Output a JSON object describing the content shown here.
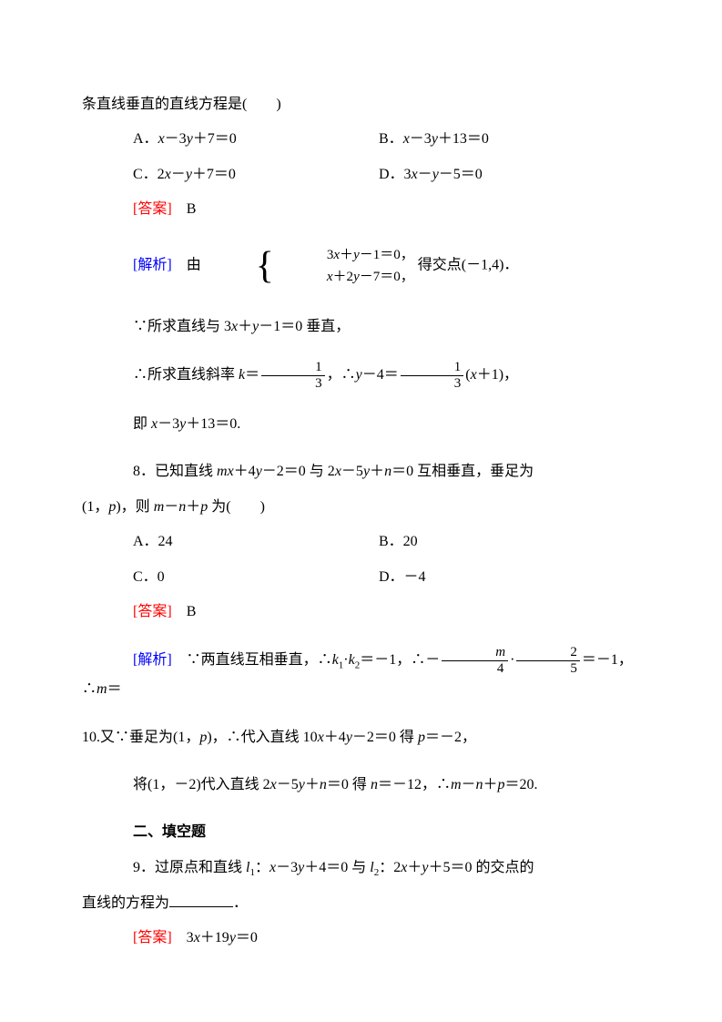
{
  "q7": {
    "stem_tail": "条直线垂直的直线方程是(　　)",
    "A": "A．x－3y＋7＝0",
    "B": "B．x－3y＋13＝0",
    "C": "C．2x－y＋7＝0",
    "D": "D．3x－y－5＝0",
    "answer_label": "[答案]",
    "answer_value": "B",
    "analysis_label": "[解析]",
    "analysis": {
      "by": "由",
      "eq1": "3x＋y－1＝0，",
      "eq2": "x＋2y－7＝0，",
      "after_system": "得交点(－1,4)．",
      "line2": "∵所求直线与 3x＋y－1＝0 垂直，",
      "line3_pre": "∴所求直线斜率 k＝",
      "line3_mid": "，∴y－4＝",
      "line3_post": "(x＋1)，",
      "frac1_num": "1",
      "frac1_den": "3",
      "frac2_num": "1",
      "frac2_den": "3",
      "line4": "即 x－3y＋13＝0."
    }
  },
  "q8": {
    "stem1": "8．已知直线 mx＋4y－2＝0 与 2x－5y＋n＝0 互相垂直，垂足为",
    "stem2": "(1，p)，则 m－n＋p 为(　　)",
    "A": "A．24",
    "B": "B．20",
    "C": "C．0",
    "D": "D．－4",
    "answer_label": "[答案]",
    "answer_value": "B",
    "analysis_label": "[解析]",
    "analysis": {
      "line1_pre": "∵两直线互相垂直，∴k₁·k₂＝－1，∴－",
      "frac1_num": "m",
      "frac1_den": "4",
      "mid_dot": "·",
      "frac2_num": "2",
      "frac2_den": "5",
      "line1_post": "＝－1，∴m＝",
      "line2": "10.又∵垂足为(1，p)，∴代入直线 10x＋4y－2＝0 得 p＝－2，",
      "line3": "将(1，－2)代入直线 2x－5y＋n＝0 得 n＝－12，∴m－n＋p＝20."
    }
  },
  "section2": {
    "heading": "二、填空题"
  },
  "q9": {
    "stem1": "9．过原点和直线 l₁：x－3y＋4＝0 与 l₂：2x＋y＋5＝0 的交点的",
    "stem2_pre": "直线的方程为",
    "stem2_post": "．",
    "answer_label": "[答案]",
    "answer_value": "3x＋19y＝0"
  },
  "colors": {
    "text": "#000000",
    "answer": "#ff0000",
    "analysis": "#0000ff",
    "background": "#ffffff"
  },
  "fonts": {
    "body_size": 16,
    "math_family": "Times New Roman"
  }
}
